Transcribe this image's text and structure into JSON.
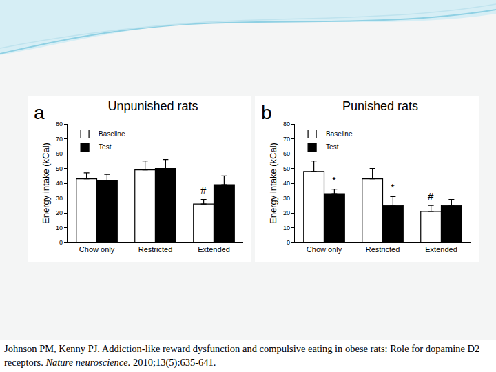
{
  "chart_data": [
    {
      "type": "bar",
      "panel": "a",
      "title": "Unpunished rats",
      "y_label": "Energy intake (kCal)",
      "categories": [
        "Chow only",
        "Restricted",
        "Extended"
      ],
      "series": [
        {
          "name": "Baseline",
          "color": "#ffffff",
          "values": [
            43,
            49,
            26
          ],
          "errors": [
            4,
            6,
            3
          ]
        },
        {
          "name": "Test",
          "color": "#000000",
          "values": [
            42,
            50,
            39
          ],
          "errors": [
            4,
            6,
            6
          ]
        }
      ],
      "annotations": [
        {
          "category": "Extended",
          "series": "Baseline",
          "text": "#"
        }
      ],
      "ylim": [
        0,
        80
      ],
      "yticks": [
        0,
        10,
        20,
        30,
        40,
        50,
        60,
        70,
        80
      ],
      "grid": false,
      "legend": "top left"
    },
    {
      "type": "bar",
      "panel": "b",
      "title": "Punished rats",
      "y_label": "Energy intake (kCal)",
      "categories": [
        "Chow only",
        "Restricted",
        "Extended"
      ],
      "series": [
        {
          "name": "Baseline",
          "color": "#ffffff",
          "values": [
            48,
            43,
            21
          ],
          "errors": [
            7,
            7,
            4
          ]
        },
        {
          "name": "Test",
          "color": "#000000",
          "values": [
            33,
            25,
            25
          ],
          "errors": [
            3,
            6,
            4
          ]
        }
      ],
      "annotations": [
        {
          "category": "Chow only",
          "series": "Test",
          "text": "*"
        },
        {
          "category": "Restricted",
          "series": "Test",
          "text": "*"
        },
        {
          "category": "Extended",
          "series": "Baseline",
          "text": "#"
        }
      ],
      "ylim": [
        0,
        80
      ],
      "yticks": [
        0,
        10,
        20,
        30,
        40,
        50,
        60,
        70,
        80
      ],
      "grid": false,
      "legend": "top left"
    }
  ],
  "citation": {
    "before": "Johnson PM, Kenny PJ. Addiction-like reward dysfunction and compulsive eating in obese rats: Role for dopamine D2 receptors. ",
    "journal": "Nature neuroscience.",
    "after": " 2010;13(5):635-641."
  }
}
